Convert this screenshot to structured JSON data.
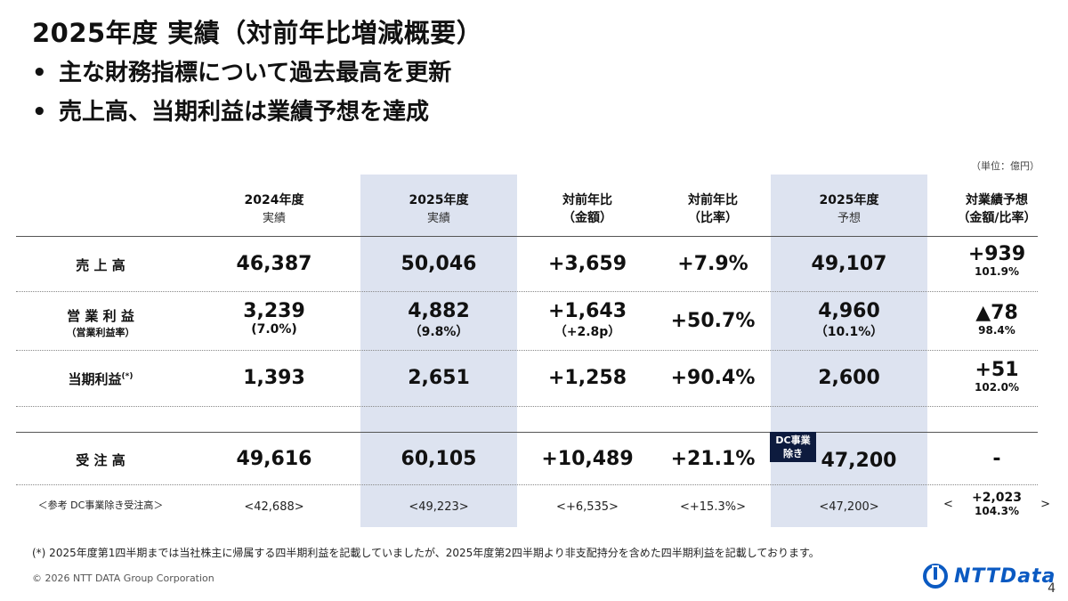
{
  "title": "2025年度 実績（対前年比増減概要）",
  "bullets": [
    "主な財務指標について過去最高を更新",
    "売上高、当期利益は業績予想を達成"
  ],
  "bullet_mark": "•",
  "unit": "（単位：億円）",
  "headers": {
    "col1": {
      "line1": "2024年度",
      "line2": "実績"
    },
    "col2": {
      "line1": "2025年度",
      "line2": "実績"
    },
    "col3": {
      "line1": "対前年比",
      "line2": "（金額）"
    },
    "col4": {
      "line1": "対前年比",
      "line2": "（比率）"
    },
    "col5": {
      "line1": "2025年度",
      "line2": "予想"
    },
    "col6": {
      "line1": "対業績予想",
      "line2": "（金額/比率）"
    }
  },
  "rows": {
    "sales": {
      "label": "売 上 高",
      "c1": "46,387",
      "c2": "50,046",
      "c3": "+3,659",
      "c4": "+7.9%",
      "c5": "49,107",
      "c6a": "+939",
      "c6b": "101.9%"
    },
    "op": {
      "label": "営 業 利 益",
      "sublabel": "（営業利益率）",
      "c1": "3,239",
      "c1b": "(7.0%)",
      "c2": "4,882",
      "c2b": "（9.8%）",
      "c3": "+1,643",
      "c3b": "（+2.8p）",
      "c4": "+50.7%",
      "c5": "4,960",
      "c5b": "（10.1%）",
      "c6a": "▲78",
      "c6b": "98.4%"
    },
    "net": {
      "label": "当期利益",
      "mark": "(*)",
      "c1": "1,393",
      "c2": "2,651",
      "c3": "+1,258",
      "c4": "+90.4%",
      "c5": "2,600",
      "c6a": "+51",
      "c6b": "102.0%"
    },
    "orders": {
      "label": "受 注 高",
      "c1": "49,616",
      "c2": "60,105",
      "c3": "+10,489",
      "c4": "+21.1%",
      "c5": "47,200",
      "c6": "-",
      "badge": "DC事業 除き"
    },
    "ref": {
      "label": "＜参考 DC事業除き受注高＞",
      "c1": "<42,688>",
      "c2": "<49,223>",
      "c3": "<+6,535>",
      "c4": "<+15.3%>",
      "c5": "<47,200>",
      "c6_open": "<",
      "c6a": "+2,023",
      "c6b": "104.3%",
      "c6_close": ">"
    }
  },
  "footnote": "(*) 2025年度第1四半期までは当社株主に帰属する四半期利益を記載していましたが、2025年度第2四半期より非支配持分を含めた四半期利益を記載しております。",
  "copyright": "© 2026 NTT DATA Group Corporation",
  "logo_text": "NTTData",
  "page_number": "4",
  "colors": {
    "band": "#dde3f0",
    "logo": "#0b5ac2",
    "badge": "#0d1b3e"
  }
}
